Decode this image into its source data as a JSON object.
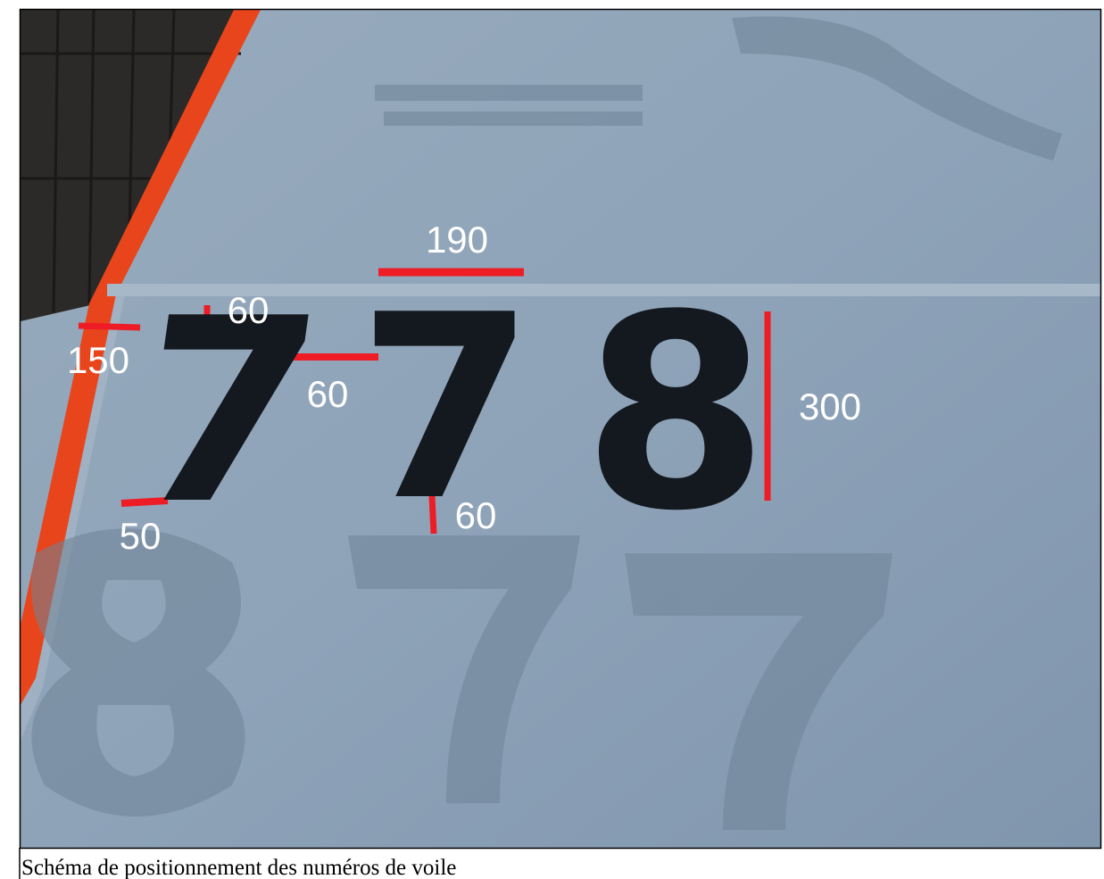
{
  "sail_number": [
    "7",
    "7",
    "8"
  ],
  "dimensions": [
    190,
    60,
    150,
    60,
    300,
    50,
    60
  ],
  "caption": "Schéma de positionnement des numéros de voile"
}
